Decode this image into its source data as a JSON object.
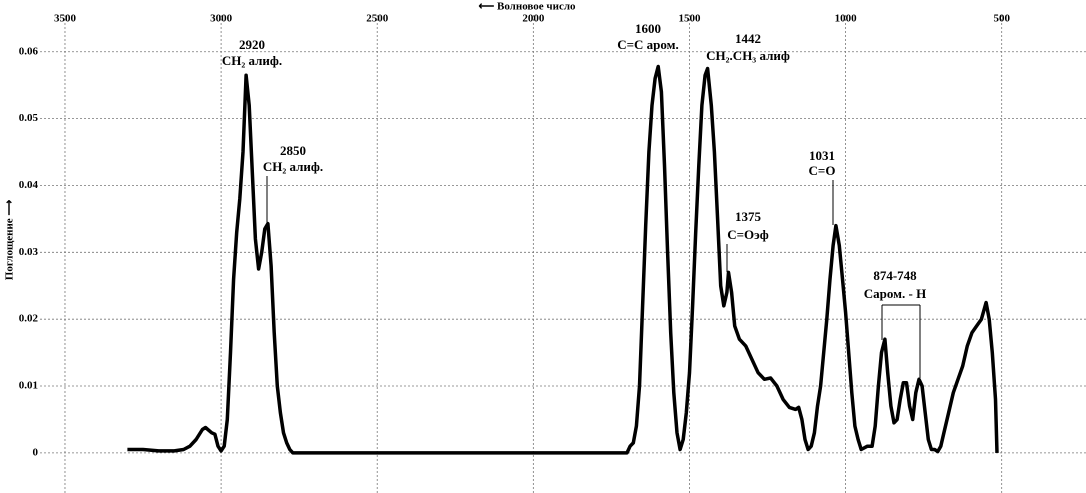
{
  "chart_data": {
    "type": "line",
    "x_label": "⟵ Волновое число",
    "y_label": "Поглощение ⟶",
    "xlim": [
      3580,
      230
    ],
    "ylim": [
      -0.006,
      0.0655
    ],
    "xticks": [
      3500,
      3000,
      2500,
      2000,
      1500,
      1000,
      500
    ],
    "yticks": [
      0,
      0.01,
      0.02,
      0.03,
      0.04,
      0.05,
      0.06
    ],
    "grid": true,
    "series": [
      {
        "color": "#000000",
        "x": [
          3300,
          3250,
          3200,
          3150,
          3120,
          3100,
          3080,
          3060,
          3050,
          3030,
          3020,
          3010,
          3000,
          2990,
          2980,
          2970,
          2960,
          2950,
          2940,
          2930,
          2920,
          2910,
          2900,
          2890,
          2880,
          2870,
          2860,
          2850,
          2840,
          2830,
          2820,
          2810,
          2800,
          2790,
          2780,
          2770,
          1700,
          1690,
          1680,
          1670,
          1660,
          1650,
          1640,
          1630,
          1620,
          1610,
          1600,
          1590,
          1580,
          1570,
          1560,
          1550,
          1540,
          1530,
          1520,
          1510,
          1500,
          1490,
          1480,
          1470,
          1460,
          1450,
          1442,
          1430,
          1420,
          1410,
          1400,
          1390,
          1380,
          1375,
          1365,
          1355,
          1340,
          1320,
          1300,
          1280,
          1260,
          1240,
          1220,
          1200,
          1180,
          1160,
          1150,
          1140,
          1130,
          1120,
          1110,
          1100,
          1090,
          1080,
          1070,
          1060,
          1050,
          1040,
          1031,
          1020,
          1010,
          1000,
          990,
          980,
          970,
          960,
          950,
          930,
          915,
          905,
          895,
          885,
          874,
          865,
          855,
          845,
          835,
          825,
          815,
          805,
          795,
          785,
          775,
          765,
          755,
          745,
          735,
          725,
          715,
          705,
          695,
          685,
          670,
          655,
          640,
          625,
          610,
          595,
          580,
          565,
          550,
          540,
          530,
          520,
          515
        ],
        "values": [
          0.0005,
          0.0005,
          0.0003,
          0.0003,
          0.0005,
          0.001,
          0.002,
          0.0035,
          0.0038,
          0.003,
          0.0028,
          0.001,
          0.0003,
          0.001,
          0.005,
          0.015,
          0.026,
          0.033,
          0.038,
          0.045,
          0.0565,
          0.052,
          0.042,
          0.032,
          0.0275,
          0.03,
          0.0335,
          0.0343,
          0.028,
          0.018,
          0.01,
          0.006,
          0.003,
          0.0015,
          0.0005,
          0,
          0,
          0.001,
          0.0015,
          0.004,
          0.01,
          0.022,
          0.034,
          0.045,
          0.052,
          0.056,
          0.0578,
          0.054,
          0.043,
          0.03,
          0.018,
          0.009,
          0.003,
          0.0005,
          0.002,
          0.006,
          0.012,
          0.022,
          0.033,
          0.043,
          0.052,
          0.0565,
          0.0575,
          0.052,
          0.045,
          0.035,
          0.025,
          0.022,
          0.024,
          0.027,
          0.024,
          0.019,
          0.017,
          0.016,
          0.014,
          0.012,
          0.011,
          0.0112,
          0.01,
          0.008,
          0.0068,
          0.0065,
          0.0068,
          0.005,
          0.002,
          0.0005,
          0.001,
          0.003,
          0.007,
          0.01,
          0.015,
          0.02,
          0.026,
          0.031,
          0.034,
          0.031,
          0.026,
          0.021,
          0.015,
          0.009,
          0.004,
          0.002,
          0.0005,
          0.001,
          0.001,
          0.004,
          0.01,
          0.015,
          0.017,
          0.012,
          0.007,
          0.0045,
          0.005,
          0.008,
          0.0105,
          0.0105,
          0.007,
          0.005,
          0.009,
          0.011,
          0.01,
          0.006,
          0.002,
          0.0005,
          0.0005,
          0.0002,
          0.001,
          0.003,
          0.006,
          0.009,
          0.011,
          0.013,
          0.016,
          0.018,
          0.019,
          0.02,
          0.0225,
          0.02,
          0.015,
          0.008,
          0
        ]
      }
    ],
    "annotations": [
      {
        "label": "2920",
        "note": "CH₂ алиф."
      },
      {
        "label": "2850",
        "note": "CH₂ алиф."
      },
      {
        "label": "1600",
        "note": "C=C аром."
      },
      {
        "label": "1442",
        "note": "CH₂.CH₃ алиф"
      },
      {
        "label": "1375",
        "note": "C=Oэф"
      },
      {
        "label": "1031",
        "note": "C=O"
      },
      {
        "label": "874-748",
        "note": "Cаром. - H"
      }
    ]
  }
}
